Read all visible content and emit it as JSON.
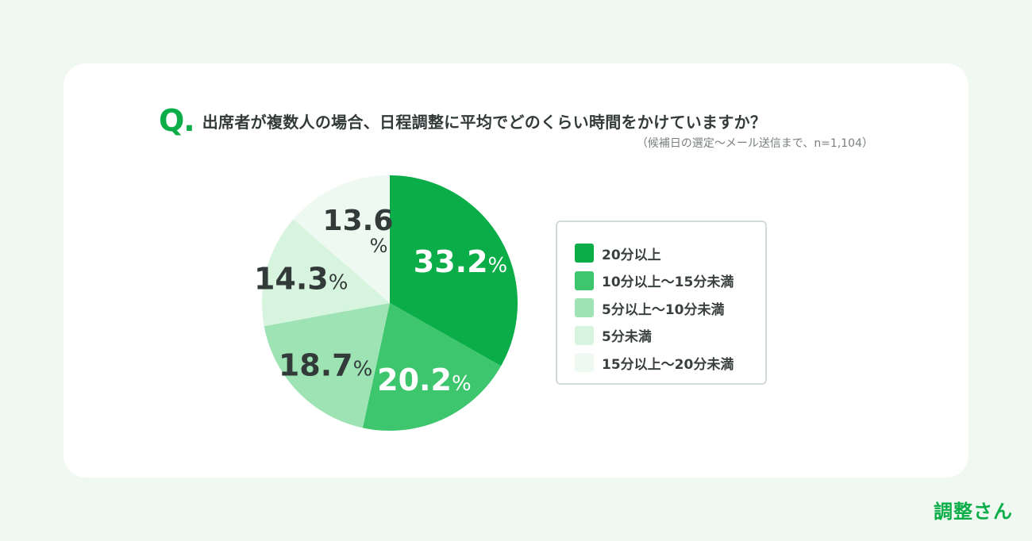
{
  "question": {
    "mark": "Q.",
    "text": "出席者が複数人の場合、日程調整に平均でどのくらい時間をかけていますか？",
    "note": "（候補日の選定〜メール送信まで、n=1,104）"
  },
  "brand": "調整さん",
  "chart_data": {
    "type": "pie",
    "title": "出席者が複数人の場合、日程調整に平均でどのくらい時間をかけていますか？",
    "n": 1104,
    "unit": "%",
    "start_angle": "12 o'clock",
    "direction": "clockwise",
    "legend_position": "right",
    "slices": [
      {
        "label": "20分以上",
        "value": 33.2,
        "display": "33.2",
        "color": "#0aad48",
        "text_color": "#ffffff"
      },
      {
        "label": "10分以上〜15分未満",
        "value": 20.2,
        "display": "20.2",
        "color": "#3dc66e",
        "text_color": "#ffffff"
      },
      {
        "label": "5分以上〜10分未満",
        "value": 18.7,
        "display": "18.7",
        "color": "#9de3b4",
        "text_color": "#333a3a"
      },
      {
        "label": "5分未満",
        "value": 14.3,
        "display": "14.3",
        "color": "#d7f4df",
        "text_color": "#333a3a"
      },
      {
        "label": "15分以上〜20分未満",
        "value": 13.6,
        "display": "13.6",
        "color": "#eef9f1",
        "text_color": "#333a3a"
      }
    ]
  }
}
